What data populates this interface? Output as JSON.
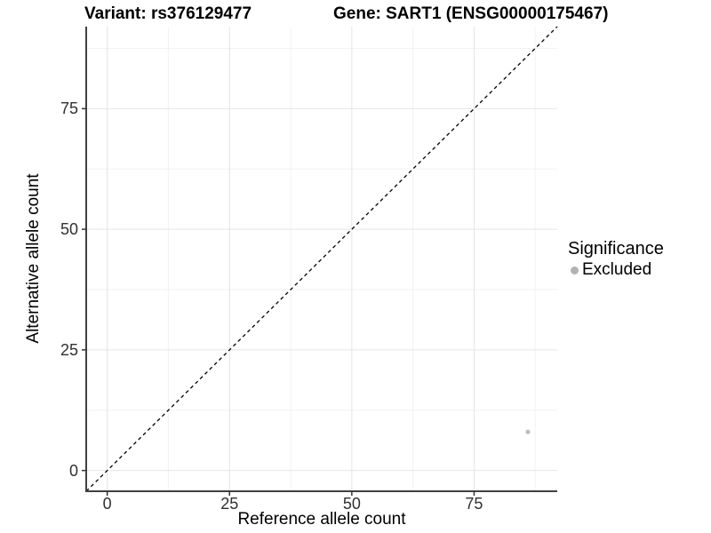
{
  "chart_data": {
    "type": "scatter",
    "title_left": "Variant: rs376129477",
    "title_right": "Gene: SART1 (ENSG00000175467)",
    "xlabel": "Reference allele count",
    "ylabel": "Alternative allele count",
    "xlim": [
      -4.3,
      92
    ],
    "ylim": [
      -4.3,
      92
    ],
    "xticks": [
      0,
      25,
      50,
      75
    ],
    "yticks": [
      0,
      25,
      50,
      75
    ],
    "xticks_minor": [
      12.5,
      37.5,
      62.5,
      87.5
    ],
    "yticks_minor": [
      12.5,
      37.5,
      62.5,
      87.5
    ],
    "grid": true,
    "reference_line": {
      "type": "identity-diagonal",
      "style": "dashed",
      "color": "#000000"
    },
    "series": [
      {
        "name": "Excluded",
        "color": "#bdbdbd",
        "points": [
          [
            86,
            8
          ]
        ]
      }
    ],
    "legend": {
      "position": "right",
      "title": "Significance",
      "items": [
        {
          "label": "Excluded",
          "color": "#b3b3b3"
        }
      ]
    },
    "colors": {
      "axis_line": "#404040",
      "tick_mark": "#333333",
      "grid_major": "#e4e4e4",
      "grid_minor": "#f2f2f2"
    }
  }
}
